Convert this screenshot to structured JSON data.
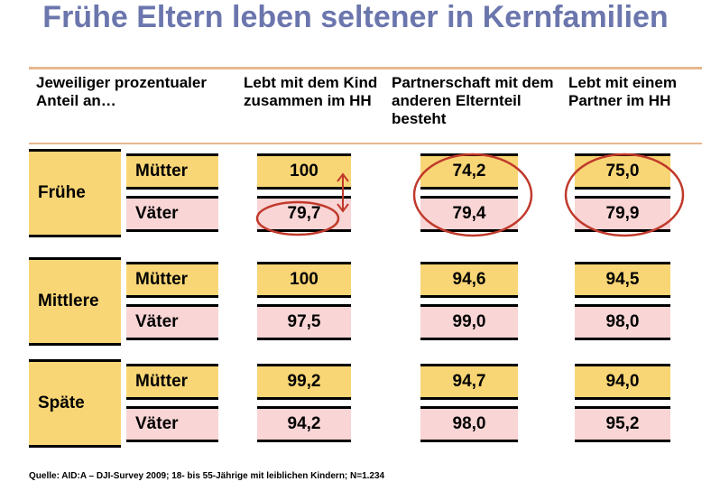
{
  "title": "Frühe Eltern leben seltener in Kernfamilien",
  "headers": {
    "group": "Jeweiliger prozentualer Anteil an…",
    "col1": "Lebt mit dem Kind zusammen im HH",
    "col2": "Partnerschaft mit dem anderen Elternteil besteht",
    "col3": "Lebt mit einem Partner im HH"
  },
  "groups": [
    {
      "label": "Frühe",
      "rows": [
        {
          "label": "Mütter",
          "values": [
            "100",
            "74,2",
            "75,0"
          ]
        },
        {
          "label": "Väter",
          "values": [
            "79,7",
            "79,4",
            "79,9"
          ]
        }
      ]
    },
    {
      "label": "Mittlere",
      "rows": [
        {
          "label": "Mütter",
          "values": [
            "100",
            "94,6",
            "94,5"
          ]
        },
        {
          "label": "Väter",
          "values": [
            "97,5",
            "99,0",
            "98,0"
          ]
        }
      ]
    },
    {
      "label": "Späte",
      "rows": [
        {
          "label": "Mütter",
          "values": [
            "99,2",
            "94,7",
            "94,0"
          ]
        },
        {
          "label": "Väter",
          "values": [
            "94,2",
            "98,0",
            "95,2"
          ]
        }
      ]
    }
  ],
  "source": "Quelle: AID:A – DJI-Survey 2009; 18- bis 55-Jährige mit leiblichen Kindern; N=1.234",
  "colors": {
    "title": "#6b76ad",
    "mother_fill": "#f9d675",
    "father_fill": "#f9d5d5",
    "rule": "#e8b78f",
    "highlight": "#c0392b"
  }
}
